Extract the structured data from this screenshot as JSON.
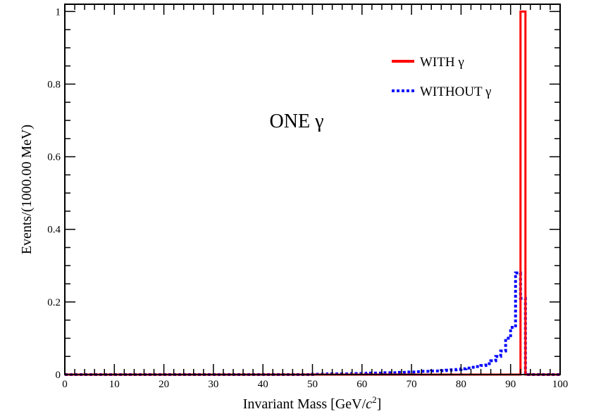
{
  "chart_data": {
    "type": "line",
    "xlabel_main": "Invariant Mass [GeV/",
    "xlabel_italic": "c",
    "xlabel_sup": "2",
    "xlabel_end": "]",
    "ylabel": "Events/(1000.00 MeV)",
    "xlim": [
      0,
      100
    ],
    "ylim": [
      0,
      1.02
    ],
    "x_ticks": [
      "0",
      "10",
      "20",
      "30",
      "40",
      "50",
      "60",
      "70",
      "80",
      "90",
      "100"
    ],
    "y_ticks": [
      "0",
      "0.2",
      "0.4",
      "0.6",
      "0.8",
      "1"
    ],
    "annotation": "ONE γ",
    "annotation_color": "#d8a8c8",
    "legend_position": "top-right",
    "series": [
      {
        "name": "WITH γ",
        "color": "#ff0000",
        "style": "solid",
        "bin_edges": [
          0,
          92,
          93,
          100
        ],
        "values": [
          0,
          1.0,
          0
        ]
      },
      {
        "name": "WITHOUT γ",
        "color": "#0000ff",
        "style": "dotted",
        "bin_edges": [
          0,
          50,
          51,
          52,
          53,
          54,
          55,
          56,
          57,
          58,
          59,
          60,
          61,
          62,
          63,
          64,
          65,
          66,
          67,
          68,
          69,
          70,
          71,
          72,
          73,
          74,
          75,
          76,
          77,
          78,
          79,
          80,
          81,
          82,
          83,
          84,
          85,
          86,
          87,
          88,
          89,
          90,
          91,
          92,
          93,
          100
        ],
        "values": [
          0,
          0.001,
          0.001,
          0.001,
          0.002,
          0.002,
          0.002,
          0.002,
          0.002,
          0.003,
          0.003,
          0.003,
          0.004,
          0.004,
          0.004,
          0.005,
          0.005,
          0.005,
          0.006,
          0.006,
          0.007,
          0.007,
          0.008,
          0.009,
          0.009,
          0.01,
          0.01,
          0.011,
          0.012,
          0.013,
          0.014,
          0.016,
          0.018,
          0.02,
          0.022,
          0.025,
          0.03,
          0.038,
          0.05,
          0.065,
          0.1,
          0.13,
          0.28,
          0.21,
          0
        ]
      }
    ]
  }
}
